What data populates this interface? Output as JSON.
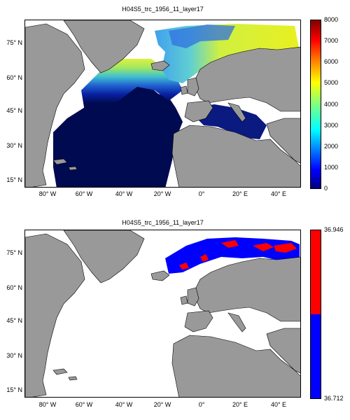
{
  "panels": [
    {
      "title": "H04S5_trc_1956_11_layer17",
      "lat_labels": [
        "75° N",
        "60° N",
        "45° N",
        "30° N",
        "15° N"
      ],
      "lon_labels": [
        "80° W",
        "60° W",
        "40° W",
        "20° W",
        "0°",
        "20° E",
        "40° E"
      ],
      "colorbar": {
        "type": "continuous",
        "colormap": "jet",
        "min": 0,
        "max": 8000,
        "ticks": [
          "8000",
          "7000",
          "6000",
          "5000",
          "4000",
          "3000",
          "2000",
          "1000",
          "0"
        ]
      }
    },
    {
      "title": "H04S5_trc_1956_11_layer17",
      "lat_labels": [
        "75° N",
        "60° N",
        "45° N",
        "30° N",
        "15° N"
      ],
      "lon_labels": [
        "80° W",
        "60° W",
        "40° W",
        "20° W",
        "0°",
        "20° E",
        "40° E"
      ],
      "colorbar": {
        "type": "binary",
        "colors": [
          "#ff0000",
          "#0000ff"
        ],
        "ticks": [
          "36.946",
          "36.712"
        ]
      }
    }
  ],
  "colors": {
    "land": "#999999",
    "no_data": "#ffffff",
    "deep": "#000a50",
    "red": "#ff0000",
    "blue": "#0000ff"
  }
}
